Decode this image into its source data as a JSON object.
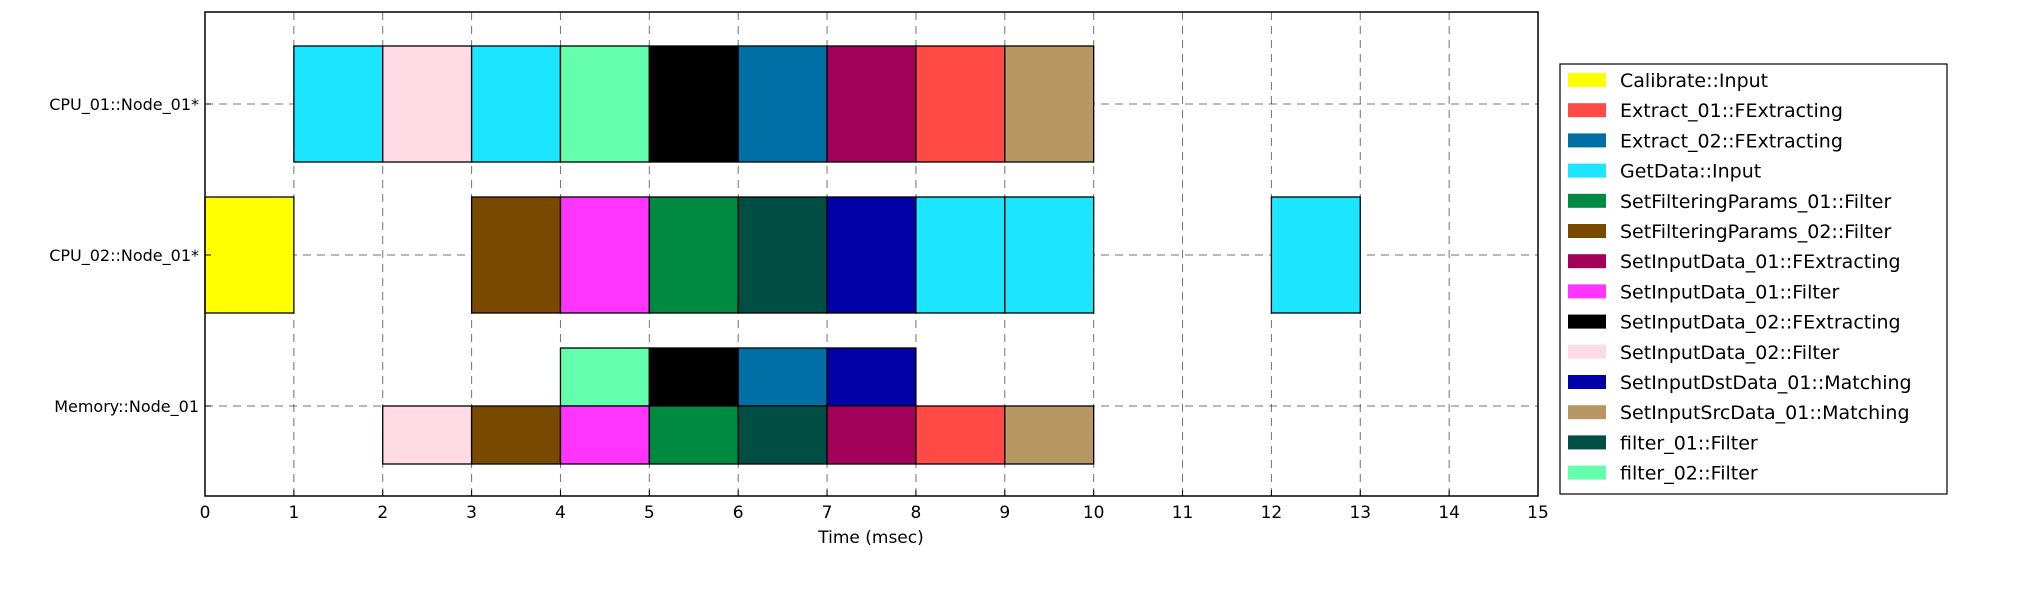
{
  "chart_data": {
    "type": "gantt",
    "xlabel": "Time (msec)",
    "xlim": [
      0,
      15
    ],
    "x_ticks": [
      "0",
      "1",
      "2",
      "3",
      "4",
      "5",
      "6",
      "7",
      "8",
      "9",
      "10",
      "11",
      "12",
      "13",
      "14",
      "15"
    ],
    "grid": true,
    "legend_position": "right",
    "rows": [
      {
        "label": "CPU_01::Node_01*"
      },
      {
        "label": "CPU_02::Node_01*"
      },
      {
        "label": "Memory::Node_01"
      }
    ],
    "tasks": [
      {
        "name": "Calibrate::Input",
        "color": "#ffff00"
      },
      {
        "name": "Extract_01::FExtracting",
        "color": "#ff4a46"
      },
      {
        "name": "Extract_02::FExtracting",
        "color": "#006fa6"
      },
      {
        "name": "GetData::Input",
        "color": "#1ce6ff"
      },
      {
        "name": "SetFilteringParams_01::Filter",
        "color": "#008941"
      },
      {
        "name": "SetFilteringParams_02::Filter",
        "color": "#7a4900"
      },
      {
        "name": "SetInputData_01::FExtracting",
        "color": "#a30059"
      },
      {
        "name": "SetInputData_01::Filter",
        "color": "#ff34ff"
      },
      {
        "name": "SetInputData_02::FExtracting",
        "color": "#000000"
      },
      {
        "name": "SetInputData_02::Filter",
        "color": "#ffdbe5"
      },
      {
        "name": "SetInputDstData_01::Matching",
        "color": "#0000a6"
      },
      {
        "name": "SetInputSrcData_01::Matching",
        "color": "#b79762"
      },
      {
        "name": "filter_01::Filter",
        "color": "#004d43"
      },
      {
        "name": "filter_02::Filter",
        "color": "#63ffac"
      }
    ],
    "bars": [
      {
        "row": 0,
        "lane": "full",
        "start": 1,
        "end": 2,
        "task": "GetData::Input"
      },
      {
        "row": 0,
        "lane": "full",
        "start": 2,
        "end": 3,
        "task": "SetInputData_02::Filter"
      },
      {
        "row": 0,
        "lane": "full",
        "start": 3,
        "end": 4,
        "task": "GetData::Input"
      },
      {
        "row": 0,
        "lane": "full",
        "start": 4,
        "end": 5,
        "task": "filter_02::Filter"
      },
      {
        "row": 0,
        "lane": "full",
        "start": 5,
        "end": 6,
        "task": "SetInputData_02::FExtracting"
      },
      {
        "row": 0,
        "lane": "full",
        "start": 6,
        "end": 7,
        "task": "Extract_02::FExtracting"
      },
      {
        "row": 0,
        "lane": "full",
        "start": 7,
        "end": 8,
        "task": "SetInputData_01::FExtracting"
      },
      {
        "row": 0,
        "lane": "full",
        "start": 8,
        "end": 9,
        "task": "Extract_01::FExtracting"
      },
      {
        "row": 0,
        "lane": "full",
        "start": 9,
        "end": 10,
        "task": "SetInputSrcData_01::Matching"
      },
      {
        "row": 1,
        "lane": "full",
        "start": 0,
        "end": 1,
        "task": "Calibrate::Input"
      },
      {
        "row": 1,
        "lane": "full",
        "start": 3,
        "end": 4,
        "task": "SetFilteringParams_02::Filter"
      },
      {
        "row": 1,
        "lane": "full",
        "start": 4,
        "end": 5,
        "task": "SetInputData_01::Filter"
      },
      {
        "row": 1,
        "lane": "full",
        "start": 5,
        "end": 6,
        "task": "SetFilteringParams_01::Filter"
      },
      {
        "row": 1,
        "lane": "full",
        "start": 6,
        "end": 7,
        "task": "filter_01::Filter"
      },
      {
        "row": 1,
        "lane": "full",
        "start": 7,
        "end": 8,
        "task": "SetInputDstData_01::Matching"
      },
      {
        "row": 1,
        "lane": "full",
        "start": 8,
        "end": 9,
        "task": "GetData::Input"
      },
      {
        "row": 1,
        "lane": "full",
        "start": 9,
        "end": 10,
        "task": "GetData::Input"
      },
      {
        "row": 1,
        "lane": "full",
        "start": 12,
        "end": 13,
        "task": "GetData::Input"
      },
      {
        "row": 2,
        "lane": "upper",
        "start": 4,
        "end": 5,
        "task": "filter_02::Filter"
      },
      {
        "row": 2,
        "lane": "upper",
        "start": 5,
        "end": 6,
        "task": "SetInputData_02::FExtracting"
      },
      {
        "row": 2,
        "lane": "upper",
        "start": 6,
        "end": 7,
        "task": "Extract_02::FExtracting"
      },
      {
        "row": 2,
        "lane": "upper",
        "start": 7,
        "end": 8,
        "task": "SetInputDstData_01::Matching"
      },
      {
        "row": 2,
        "lane": "lower",
        "start": 2,
        "end": 3,
        "task": "SetInputData_02::Filter"
      },
      {
        "row": 2,
        "lane": "lower",
        "start": 3,
        "end": 4,
        "task": "SetFilteringParams_02::Filter"
      },
      {
        "row": 2,
        "lane": "lower",
        "start": 4,
        "end": 5,
        "task": "SetInputData_01::Filter"
      },
      {
        "row": 2,
        "lane": "lower",
        "start": 5,
        "end": 6,
        "task": "SetFilteringParams_01::Filter"
      },
      {
        "row": 2,
        "lane": "lower",
        "start": 6,
        "end": 7,
        "task": "filter_01::Filter"
      },
      {
        "row": 2,
        "lane": "lower",
        "start": 7,
        "end": 8,
        "task": "SetInputData_01::FExtracting"
      },
      {
        "row": 2,
        "lane": "lower",
        "start": 8,
        "end": 9,
        "task": "Extract_01::FExtracting"
      },
      {
        "row": 2,
        "lane": "lower",
        "start": 9,
        "end": 10,
        "task": "SetInputSrcData_01::Matching"
      }
    ]
  }
}
